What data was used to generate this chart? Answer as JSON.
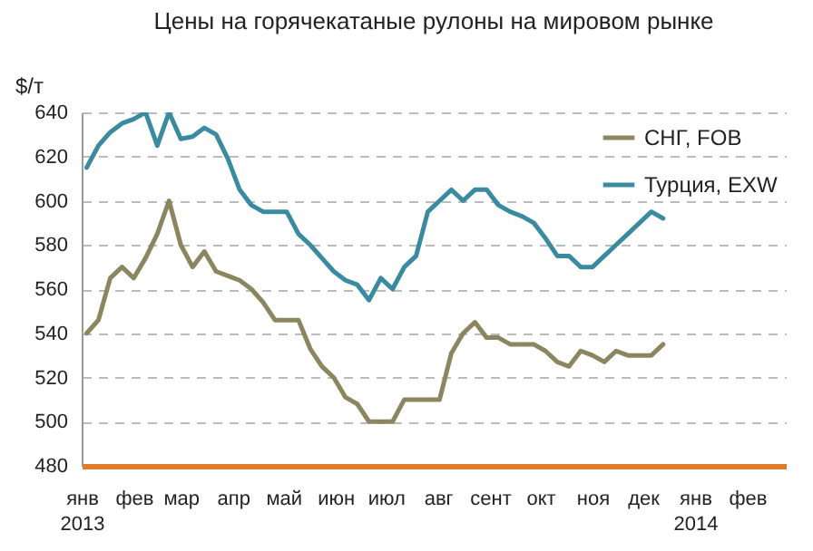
{
  "chart_data": {
    "type": "line",
    "title": "Цены на горячекатаные рулоны на мировом рынке",
    "ylabel": "$/т",
    "x": [
      "2013-01-04",
      "2013-01-11",
      "2013-01-18",
      "2013-01-25",
      "2013-02-01",
      "2013-02-08",
      "2013-02-15",
      "2013-02-22",
      "2013-03-01",
      "2013-03-08",
      "2013-03-15",
      "2013-03-22",
      "2013-03-29",
      "2013-04-05",
      "2013-04-12",
      "2013-04-19",
      "2013-04-26",
      "2013-05-03",
      "2013-05-10",
      "2013-05-17",
      "2013-05-24",
      "2013-05-31",
      "2013-06-07",
      "2013-06-14",
      "2013-06-21",
      "2013-06-28",
      "2013-07-05",
      "2013-07-12",
      "2013-07-19",
      "2013-07-26",
      "2013-08-02",
      "2013-08-09",
      "2013-08-16",
      "2013-08-23",
      "2013-08-30",
      "2013-09-06",
      "2013-09-13",
      "2013-09-20",
      "2013-09-27",
      "2013-10-04",
      "2013-10-11",
      "2013-10-18",
      "2013-10-25",
      "2013-11-01",
      "2013-11-08",
      "2013-11-15",
      "2013-11-22",
      "2013-11-29",
      "2013-12-06",
      "2013-12-13"
    ],
    "series": [
      {
        "name": "СНГ, FOB",
        "color": "#8c8660",
        "values": [
          540,
          546,
          565,
          570,
          565,
          574,
          585,
          600,
          580,
          570,
          577,
          568,
          566,
          564,
          560,
          554,
          546,
          546,
          546,
          533,
          525,
          520,
          511,
          508,
          500,
          500,
          500,
          510,
          510,
          510,
          510,
          531,
          540,
          545,
          538,
          538,
          535,
          535,
          535,
          532,
          527,
          525,
          532,
          530,
          527,
          532,
          530,
          530,
          530,
          535
        ]
      },
      {
        "name": "Турция, EXW",
        "color": "#3a8ba0",
        "values": [
          615,
          625,
          631,
          635,
          637,
          640,
          625,
          640,
          628,
          629,
          633,
          630,
          619,
          605,
          598,
          595,
          595,
          595,
          585,
          580,
          574,
          568,
          564,
          562,
          555,
          565,
          560,
          570,
          575,
          595,
          600,
          605,
          600,
          605,
          605,
          598,
          595,
          593,
          590,
          583,
          575,
          575,
          570,
          570,
          575,
          580,
          585,
          590,
          595,
          592
        ]
      }
    ],
    "xlim": [
      "2013-01-01",
      "2014-02-24"
    ],
    "xticks": [
      {
        "value": "2013-01-01",
        "label": "янв\n2013"
      },
      {
        "value": "2013-02-01",
        "label": "фев"
      },
      {
        "value": "2013-03-01",
        "label": "мар"
      },
      {
        "value": "2013-04-01",
        "label": "апр"
      },
      {
        "value": "2013-05-01",
        "label": "май"
      },
      {
        "value": "2013-06-01",
        "label": "июн"
      },
      {
        "value": "2013-07-01",
        "label": "июл"
      },
      {
        "value": "2013-08-01",
        "label": "авг"
      },
      {
        "value": "2013-09-01",
        "label": "сент"
      },
      {
        "value": "2013-10-01",
        "label": "окт"
      },
      {
        "value": "2013-11-01",
        "label": "ноя"
      },
      {
        "value": "2013-12-01",
        "label": "дек"
      },
      {
        "value": "2014-01-01",
        "label": "янв\n2014"
      },
      {
        "value": "2014-02-01",
        "label": "фев"
      }
    ],
    "ylim": [
      480,
      640
    ],
    "yticks": [
      480,
      500,
      520,
      540,
      560,
      580,
      600,
      620,
      640
    ],
    "grid": "y",
    "legend": "top right",
    "marker": "none",
    "line_style": "solid"
  }
}
